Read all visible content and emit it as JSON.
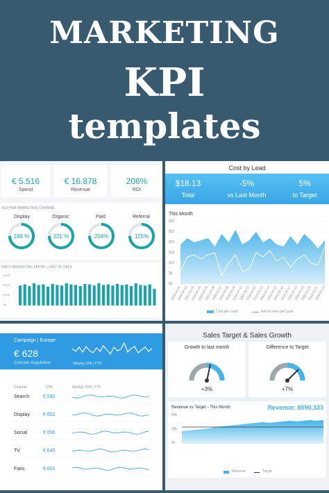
{
  "hero": {
    "line1": "MARKETING",
    "line2": "KPI",
    "line3": "templates"
  },
  "p1": {
    "kpis": [
      {
        "value": "€ 5.516",
        "label": "Spend"
      },
      {
        "value": "€ 16.878",
        "label": "Revenue"
      },
      {
        "value": "206%",
        "label": "ROI"
      }
    ],
    "roi_title": "ROI PER MARKETING CHANNEL",
    "gauges": [
      {
        "label": "Display",
        "value": "184 %",
        "fill": 0.75
      },
      {
        "label": "Organic",
        "value": "321 %",
        "fill": 0.75
      },
      {
        "label": "Paid",
        "value": "204%",
        "fill": 0.75
      },
      {
        "label": "Referral",
        "value": "115%",
        "fill": 0.75
      }
    ],
    "spend_title": "DAILY MARKETING SPEND | LAST 30 DAYS",
    "spend_ticks": [
      "€300",
      "€200",
      "€100",
      "€0"
    ]
  },
  "p2": {
    "title": "Cost by Lead",
    "kpis": [
      {
        "value": "$18.13",
        "label": "Total"
      },
      {
        "value": "-5%",
        "label": "vs Last Month"
      },
      {
        "value": "5%",
        "label": "to Target"
      }
    ],
    "section": "This Month",
    "y_ticks": [
      "$30",
      "$25",
      "$20",
      "$15",
      "$10",
      "$5",
      "$0"
    ],
    "legend": [
      "Cost per Lead",
      "Net Income per Lead"
    ],
    "accent": "#4fb6ec"
  },
  "p3": {
    "header": "Campaign | Europe",
    "big_value": "€ 628",
    "big_label": "Cost per Acquisition",
    "spark_label": "Weekly CPA | YTD",
    "col_headers": [
      "Channel",
      "CPA",
      "Weekly CPA | YTD"
    ],
    "rows": [
      {
        "channel": "Search",
        "cpa": "€ 592"
      },
      {
        "channel": "Display",
        "cpa": "€ 652"
      },
      {
        "channel": "Social",
        "cpa": "€ 656"
      },
      {
        "channel": "TV",
        "cpa": "€ 645"
      },
      {
        "channel": "Fairs",
        "cpa": "€ 601"
      }
    ],
    "accent": "#2f9be2"
  },
  "p4": {
    "title": "Sales Target & Sales Growth",
    "gauge1_title": "Growth to last month",
    "gauge1_value": "+3%",
    "gauge2_title": "Difference to Target",
    "gauge2_value": "+7%",
    "chart_title": "Revenue vs Target - This Month",
    "revenue": "Revenue: $590,333",
    "y_ticks": [
      "40k",
      "20k",
      "0k"
    ],
    "legend": [
      "Revenue",
      "Target"
    ]
  },
  "chart_data": [
    {
      "type": "bar",
      "title": "DAILY MARKETING SPEND | LAST 30 DAYS",
      "ylim": [
        0,
        300
      ],
      "values": [
        180,
        190,
        175,
        200,
        185,
        190,
        170,
        195,
        185,
        180,
        200,
        190,
        185,
        175,
        195,
        190,
        180,
        200,
        185,
        190,
        180,
        195,
        185,
        190,
        175,
        200,
        185,
        180,
        190,
        150
      ]
    },
    {
      "type": "area",
      "title": "This Month",
      "ylim": [
        0,
        30
      ],
      "x": [
        "2019-04-01",
        "2019-04-02",
        "2019-04-03",
        "2019-04-04",
        "2019-04-05",
        "2019-04-06",
        "2019-04-07",
        "2019-04-08",
        "2019-04-09",
        "2019-04-10",
        "2019-04-11",
        "2019-04-12",
        "2019-04-13",
        "2019-04-14",
        "2019-04-15",
        "2019-04-16",
        "2019-04-17",
        "2019-04-18",
        "2019-04-19",
        "2019-04-20",
        "2019-04-21",
        "2019-04-22"
      ],
      "series": [
        {
          "name": "Cost per Lead",
          "values": [
            19,
            22,
            20,
            21,
            22,
            18,
            24,
            20,
            26,
            19,
            21,
            25,
            20,
            22,
            19,
            18,
            23,
            19,
            24,
            21,
            17,
            21
          ]
        },
        {
          "name": "Net Income per Lead",
          "values": [
            6,
            13,
            14,
            12,
            14,
            15,
            4,
            10,
            14,
            6,
            7,
            15,
            13,
            16,
            11,
            13,
            8,
            12,
            14,
            10,
            9,
            18
          ]
        }
      ]
    },
    {
      "type": "area",
      "title": "Revenue vs Target - This Month",
      "ylim": [
        0,
        40000
      ],
      "series": [
        {
          "name": "Revenue",
          "values": [
            18000,
            19000,
            20000,
            21000,
            22000,
            24000,
            25000,
            26000,
            27000,
            28000,
            29000,
            30000,
            31000,
            30000,
            31000,
            32000,
            33000,
            32000,
            33000,
            34000,
            33000,
            34000
          ]
        },
        {
          "name": "Target",
          "values": [
            24000,
            24000,
            24000,
            24000,
            24000,
            24000,
            24000,
            24000,
            24000,
            24000,
            24000,
            24000,
            24000,
            24000,
            24000,
            24000,
            24000,
            24000,
            24000,
            24000,
            24000,
            24000
          ]
        }
      ]
    }
  ]
}
